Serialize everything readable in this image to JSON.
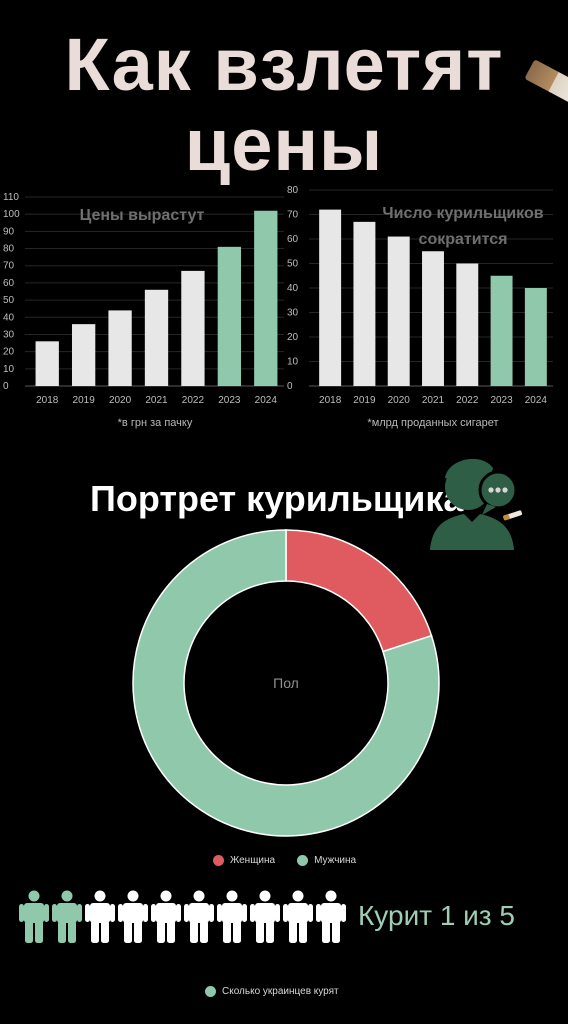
{
  "title": {
    "line1": "Как взлетят",
    "line2": "цены"
  },
  "colors": {
    "green": "#90c8ac",
    "light": "#e7e7e7",
    "red": "#e05b5f",
    "background": "#000000"
  },
  "chart_data": [
    {
      "type": "bar",
      "title": "Цены вырастут",
      "categories": [
        "2018",
        "2019",
        "2020",
        "2021",
        "2022",
        "2023",
        "2024"
      ],
      "values": [
        26,
        36,
        44,
        56,
        67,
        81,
        102
      ],
      "highlight_from_index": 5,
      "ylim": [
        0,
        110
      ],
      "yticks": [
        "0",
        "10",
        "20",
        "30",
        "40",
        "50",
        "60",
        "70",
        "80",
        "90",
        "100",
        "110"
      ],
      "note": "*в грн за пачку"
    },
    {
      "type": "bar",
      "title": "Число курильщиков сократится",
      "title_lines": [
        "Число курильщиков",
        "сократится"
      ],
      "categories": [
        "2018",
        "2019",
        "2020",
        "2021",
        "2022",
        "2023",
        "2024"
      ],
      "values": [
        72,
        67,
        61,
        55,
        50,
        45,
        40
      ],
      "highlight_from_index": 5,
      "ylim": [
        0,
        80
      ],
      "yticks": [
        "0",
        "10",
        "20",
        "30",
        "40",
        "50",
        "60",
        "70",
        "80"
      ],
      "note": "*млрд проданных сигарет"
    },
    {
      "type": "pie",
      "title": "Портрет курильщика",
      "center_label": "Пол",
      "labels": [
        "Женщина",
        "Мужчина"
      ],
      "values": [
        20,
        80
      ]
    },
    {
      "type": "table",
      "legend": "Сколько украинцев курят",
      "ratio_text": "Курит 1 из 5",
      "total": 10,
      "highlighted": 2
    }
  ]
}
